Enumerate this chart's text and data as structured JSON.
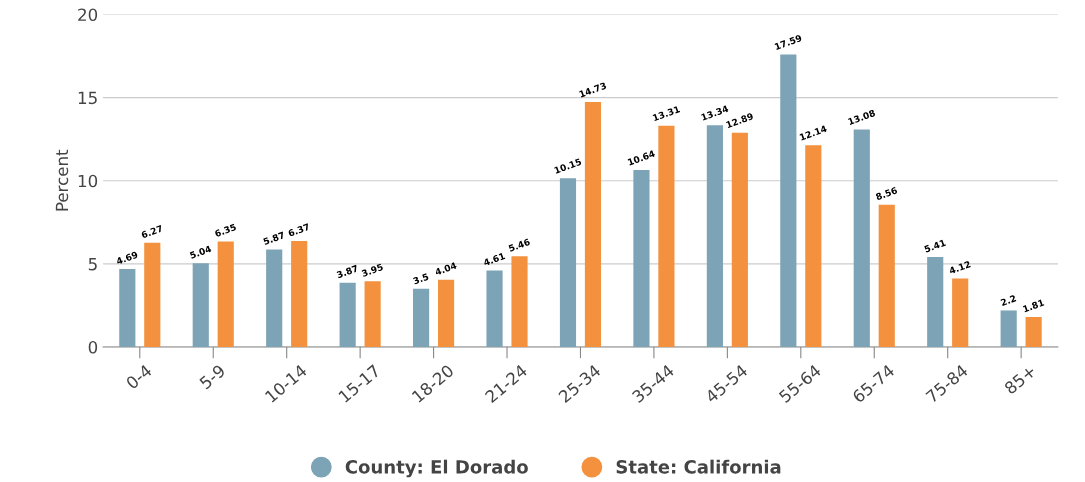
{
  "chart_data": {
    "type": "bar",
    "ylabel": "Percent",
    "categories": [
      "0-4",
      "5-9",
      "10-14",
      "15-17",
      "18-20",
      "21-24",
      "25-34",
      "35-44",
      "45-54",
      "55-64",
      "65-74",
      "75-84",
      "85+"
    ],
    "series": [
      {
        "name": "County: El Dorado",
        "color": "#7ca3b6",
        "values": [
          4.69,
          5.04,
          5.87,
          3.87,
          3.5,
          4.61,
          10.15,
          10.64,
          13.34,
          17.59,
          13.08,
          5.41,
          2.2
        ]
      },
      {
        "name": "State: California",
        "color": "#f4913f",
        "values": [
          6.27,
          6.35,
          6.37,
          3.95,
          4.04,
          5.46,
          14.73,
          13.31,
          12.89,
          12.14,
          8.56,
          4.12,
          1.81
        ]
      }
    ],
    "ylim": [
      0,
      20
    ],
    "yticks": [
      0,
      5,
      10,
      15,
      20
    ],
    "grid": "y",
    "legend": "bottom",
    "data_labels": true
  }
}
